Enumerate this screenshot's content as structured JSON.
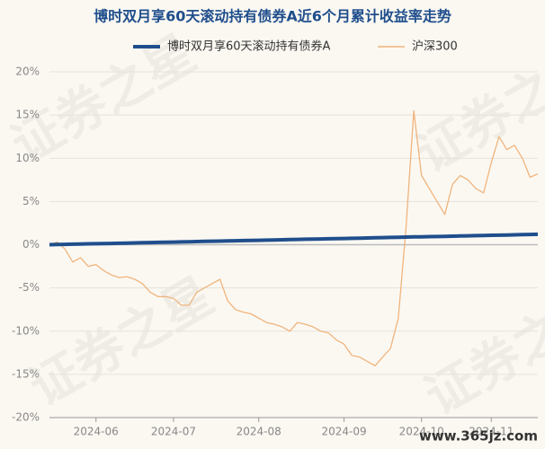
{
  "chart_data": {
    "type": "line",
    "title": "博时双月享60天滚动持有债券A近6个月累计收益率走势",
    "watermark": "证券之星",
    "source": "www.365jz.com",
    "categories": [
      null,
      null,
      null,
      null,
      null,
      null,
      "2024-06",
      null,
      null,
      null,
      null,
      null,
      null,
      null,
      null,
      null,
      "2024-07",
      null,
      null,
      null,
      null,
      null,
      null,
      null,
      null,
      null,
      null,
      "2024-08",
      null,
      null,
      null,
      null,
      null,
      null,
      null,
      null,
      null,
      null,
      "2024-09",
      null,
      null,
      null,
      null,
      null,
      null,
      null,
      null,
      null,
      "2024-10",
      null,
      null,
      null,
      null,
      null,
      null,
      null,
      null,
      "2024-11",
      null,
      null,
      null,
      null,
      null,
      null
    ],
    "series": [
      {
        "name": "博时双月享60天滚动持有债券A",
        "color": "#1f4e8c",
        "values": [
          0,
          0.02,
          0.04,
          0.06,
          0.08,
          0.1,
          0.11,
          0.13,
          0.15,
          0.17,
          0.19,
          0.21,
          0.23,
          0.25,
          0.27,
          0.29,
          0.3,
          0.32,
          0.34,
          0.36,
          0.38,
          0.4,
          0.42,
          0.44,
          0.46,
          0.48,
          0.5,
          0.51,
          0.53,
          0.55,
          0.57,
          0.59,
          0.61,
          0.63,
          0.65,
          0.67,
          0.69,
          0.7,
          0.72,
          0.74,
          0.76,
          0.78,
          0.8,
          0.82,
          0.84,
          0.86,
          0.88,
          0.9,
          0.91,
          0.93,
          0.95,
          0.97,
          0.99,
          1.01,
          1.03,
          1.05,
          1.07,
          1.09,
          1.1,
          1.12,
          1.14,
          1.16,
          1.18,
          1.2
        ]
      },
      {
        "name": "沪深300",
        "color": "#f0b47c",
        "values": [
          0,
          0.3,
          -0.5,
          -2,
          -1.5,
          -2.5,
          -2.3,
          -3,
          -3.5,
          -3.8,
          -3.7,
          -4,
          -4.5,
          -5.5,
          -6,
          -6,
          -6.2,
          -7,
          -7,
          -5.5,
          -5,
          -4.5,
          -4,
          -6.5,
          -7.5,
          -7.8,
          -8,
          -8.5,
          -9,
          -9.2,
          -9.5,
          -10,
          -9,
          -9.2,
          -9.5,
          -10,
          -10.2,
          -11,
          -11.5,
          -12.8,
          -13,
          -13.5,
          -14,
          -13,
          -12,
          -8.5,
          2,
          15.5,
          8,
          6.5,
          5,
          3.5,
          7,
          8,
          7.5,
          6.5,
          6,
          9.5,
          12.5,
          11,
          11.5,
          10,
          7.8,
          8.2
        ]
      }
    ],
    "ylim": [
      -20,
      20
    ],
    "yticks": [
      {
        "value": -20,
        "label": "-20%"
      },
      {
        "value": -15,
        "label": "-15%"
      },
      {
        "value": -10,
        "label": "-10%"
      },
      {
        "value": -5,
        "label": "-5%"
      },
      {
        "value": 0,
        "label": "0%"
      },
      {
        "value": 5,
        "label": "5%"
      },
      {
        "value": 10,
        "label": "10%"
      },
      {
        "value": 15,
        "label": "15%"
      },
      {
        "value": 20,
        "label": "20%"
      }
    ],
    "grid": true
  }
}
